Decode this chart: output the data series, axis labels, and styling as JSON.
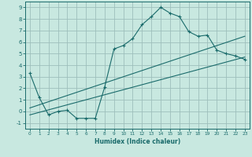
{
  "xlabel": "Humidex (Indice chaleur)",
  "xlim": [
    -0.5,
    23.5
  ],
  "ylim": [
    -1.5,
    9.5
  ],
  "yticks": [
    -1,
    0,
    1,
    2,
    3,
    4,
    5,
    6,
    7,
    8,
    9
  ],
  "xticks": [
    0,
    1,
    2,
    3,
    4,
    5,
    6,
    7,
    8,
    9,
    10,
    11,
    12,
    13,
    14,
    15,
    16,
    17,
    18,
    19,
    20,
    21,
    22,
    23
  ],
  "bg_color": "#c8e8e0",
  "grid_color": "#9dbfbb",
  "line_color": "#1a6b6b",
  "series1_x": [
    0,
    1,
    2,
    3,
    4,
    5,
    6,
    7,
    8,
    9,
    10,
    11,
    12,
    13,
    14,
    15,
    16,
    17,
    18,
    19,
    20,
    21,
    22,
    23
  ],
  "series1_y": [
    3.3,
    1.2,
    -0.3,
    0.0,
    0.1,
    -0.6,
    -0.6,
    -0.6,
    2.1,
    5.4,
    5.7,
    6.3,
    7.5,
    8.2,
    9.0,
    8.5,
    8.2,
    6.9,
    6.5,
    6.6,
    5.3,
    5.0,
    4.8,
    4.5
  ],
  "series2_x": [
    0,
    23
  ],
  "series2_y": [
    0.3,
    6.5
  ],
  "series3_x": [
    0,
    23
  ],
  "series3_y": [
    -0.3,
    4.7
  ]
}
